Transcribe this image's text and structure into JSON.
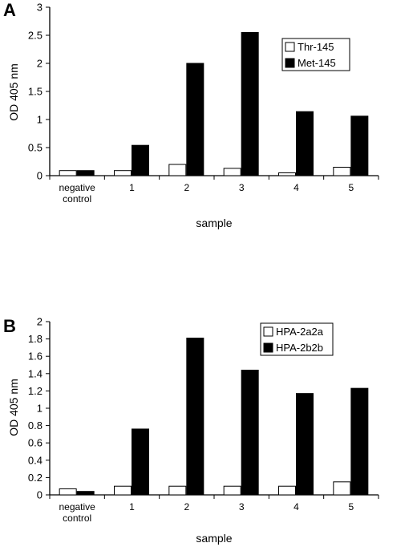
{
  "chart_data": [
    {
      "type": "bar",
      "panel": "A",
      "xlabel": "sample",
      "ylabel": "OD 405 nm",
      "ylim": [
        0,
        3
      ],
      "yticks": [
        "0",
        "0.5",
        "1",
        "1.5",
        "2",
        "2.5",
        "3"
      ],
      "yticks_values": [
        0,
        0.5,
        1,
        1.5,
        2,
        2.5,
        3
      ],
      "categories": [
        [
          "negative",
          "control"
        ],
        [
          "1"
        ],
        [
          "2"
        ],
        [
          "3"
        ],
        [
          "4"
        ],
        [
          "5"
        ]
      ],
      "series": [
        {
          "name": "Thr-145",
          "fill": "#ffffff",
          "values": [
            0.09,
            0.09,
            0.2,
            0.13,
            0.05,
            0.15
          ]
        },
        {
          "name": "Met-145",
          "fill": "#000000",
          "values": [
            0.09,
            0.54,
            2.0,
            2.55,
            1.14,
            1.06
          ]
        }
      ],
      "legend_position": "top-right",
      "grid": false
    },
    {
      "type": "bar",
      "panel": "B",
      "xlabel": "sample",
      "ylabel": "OD 405 nm",
      "ylim": [
        0,
        2
      ],
      "yticks": [
        "0",
        "0.2",
        "0.4",
        "0.6",
        "0.8",
        "1",
        "1.2",
        "1.4",
        "1.6",
        "1.8",
        "2"
      ],
      "yticks_values": [
        0,
        0.2,
        0.4,
        0.6,
        0.8,
        1,
        1.2,
        1.4,
        1.6,
        1.8,
        2
      ],
      "categories": [
        [
          "negative",
          "control"
        ],
        [
          "1"
        ],
        [
          "2"
        ],
        [
          "3"
        ],
        [
          "4"
        ],
        [
          "5"
        ]
      ],
      "series": [
        {
          "name": "HPA-2a2a",
          "fill": "#ffffff",
          "values": [
            0.07,
            0.1,
            0.1,
            0.1,
            0.1,
            0.15
          ]
        },
        {
          "name": "HPA-2b2b",
          "fill": "#000000",
          "values": [
            0.04,
            0.76,
            1.81,
            1.44,
            1.17,
            1.23
          ]
        }
      ],
      "legend_position": "top-right",
      "grid": false
    }
  ]
}
